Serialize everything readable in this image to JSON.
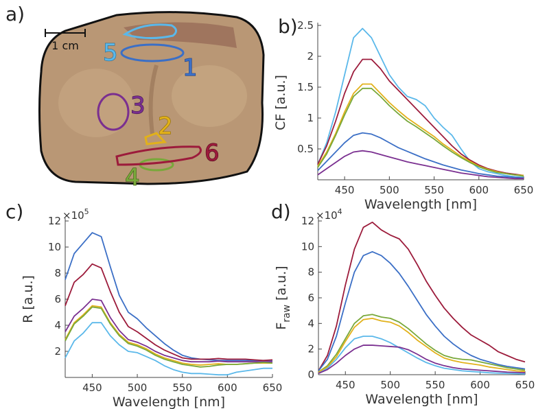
{
  "panel_a": {
    "label": "a)",
    "scale_bar": "1 cm",
    "regions": [
      "1",
      "2",
      "3",
      "4",
      "5",
      "6"
    ]
  },
  "chart_data": [
    {
      "type": "line",
      "panel_label": "b)",
      "xlabel": "Wavelength [nm]",
      "ylabel": "CF [a.u.]",
      "x": [
        420,
        430,
        440,
        450,
        460,
        470,
        480,
        490,
        500,
        510,
        520,
        530,
        540,
        550,
        560,
        570,
        580,
        590,
        600,
        610,
        620,
        630,
        640,
        650
      ],
      "xlim": [
        420,
        650
      ],
      "xticks": [
        450,
        500,
        550,
        600,
        650
      ],
      "ylim": [
        0,
        2.5
      ],
      "yticks": [
        0.5,
        1,
        1.5,
        2,
        2.5
      ],
      "series": [
        {
          "color": "#5ab8ea",
          "values": [
            0.25,
            0.6,
            1.1,
            1.7,
            2.3,
            2.45,
            2.3,
            2.0,
            1.7,
            1.5,
            1.35,
            1.3,
            1.2,
            1.0,
            0.85,
            0.72,
            0.5,
            0.3,
            0.18,
            0.13,
            0.1,
            0.07,
            0.05,
            0.04
          ]
        },
        {
          "color": "#9c1b3b",
          "values": [
            0.25,
            0.55,
            0.95,
            1.4,
            1.75,
            1.95,
            1.95,
            1.8,
            1.6,
            1.45,
            1.3,
            1.15,
            1.0,
            0.85,
            0.7,
            0.55,
            0.42,
            0.32,
            0.24,
            0.18,
            0.14,
            0.11,
            0.09,
            0.07
          ]
        },
        {
          "color": "#e2b11a",
          "values": [
            0.22,
            0.45,
            0.75,
            1.1,
            1.4,
            1.55,
            1.55,
            1.4,
            1.25,
            1.12,
            1.0,
            0.9,
            0.8,
            0.7,
            0.58,
            0.48,
            0.38,
            0.3,
            0.22,
            0.17,
            0.13,
            0.1,
            0.08,
            0.07
          ]
        },
        {
          "color": "#78a83a",
          "values": [
            0.2,
            0.42,
            0.72,
            1.05,
            1.35,
            1.48,
            1.48,
            1.35,
            1.2,
            1.07,
            0.95,
            0.86,
            0.76,
            0.66,
            0.55,
            0.45,
            0.36,
            0.28,
            0.21,
            0.16,
            0.12,
            0.1,
            0.08,
            0.06
          ]
        },
        {
          "color": "#3b6fc6",
          "values": [
            0.15,
            0.3,
            0.45,
            0.6,
            0.72,
            0.76,
            0.74,
            0.68,
            0.6,
            0.52,
            0.46,
            0.4,
            0.34,
            0.29,
            0.24,
            0.2,
            0.16,
            0.13,
            0.1,
            0.08,
            0.06,
            0.05,
            0.04,
            0.03
          ]
        },
        {
          "color": "#7a2f90",
          "values": [
            0.08,
            0.18,
            0.28,
            0.38,
            0.45,
            0.47,
            0.45,
            0.41,
            0.37,
            0.33,
            0.29,
            0.26,
            0.23,
            0.2,
            0.17,
            0.14,
            0.11,
            0.09,
            0.07,
            0.05,
            0.04,
            0.03,
            0.02,
            0.02
          ]
        }
      ]
    },
    {
      "type": "line",
      "panel_label": "c)",
      "xlabel": "Wavelength [nm]",
      "ylabel": "R [a.u.]",
      "y_multiplier": {
        "base": "×10",
        "exp": "5"
      },
      "x": [
        420,
        430,
        440,
        450,
        460,
        470,
        480,
        490,
        500,
        510,
        520,
        530,
        540,
        550,
        560,
        570,
        580,
        590,
        600,
        610,
        620,
        630,
        640,
        650
      ],
      "xlim": [
        420,
        650
      ],
      "xticks": [
        450,
        500,
        550,
        600,
        650
      ],
      "ylim": [
        0,
        12
      ],
      "yticks": [
        2,
        4,
        6,
        8,
        10,
        12
      ],
      "series": [
        {
          "color": "#3b6fc6",
          "values": [
            7.5,
            9.5,
            10.3,
            11.1,
            10.8,
            8.5,
            6.3,
            5.0,
            4.5,
            3.8,
            3.2,
            2.6,
            2.1,
            1.7,
            1.5,
            1.4,
            1.35,
            1.3,
            1.3,
            1.3,
            1.3,
            1.3,
            1.3,
            1.3
          ]
        },
        {
          "color": "#9c1b3b",
          "values": [
            5.5,
            7.3,
            7.9,
            8.7,
            8.4,
            6.6,
            5.0,
            3.9,
            3.5,
            3.0,
            2.5,
            2.1,
            1.8,
            1.5,
            1.4,
            1.4,
            1.4,
            1.45,
            1.4,
            1.4,
            1.4,
            1.35,
            1.3,
            1.35
          ]
        },
        {
          "color": "#7a2f90",
          "values": [
            3.5,
            4.7,
            5.3,
            6.0,
            5.9,
            4.6,
            3.6,
            2.9,
            2.7,
            2.4,
            2.0,
            1.7,
            1.5,
            1.3,
            1.2,
            1.2,
            1.2,
            1.25,
            1.2,
            1.2,
            1.2,
            1.2,
            1.2,
            1.2
          ]
        },
        {
          "color": "#e2b11a",
          "values": [
            2.9,
            4.2,
            4.8,
            5.5,
            5.4,
            4.2,
            3.3,
            2.7,
            2.5,
            2.2,
            1.8,
            1.5,
            1.3,
            1.1,
            1.0,
            0.95,
            1.0,
            1.05,
            1.0,
            1.0,
            1.05,
            1.1,
            1.1,
            1.1
          ]
        },
        {
          "color": "#78a83a",
          "values": [
            2.8,
            4.1,
            4.7,
            5.4,
            5.3,
            4.1,
            3.2,
            2.6,
            2.4,
            2.1,
            1.7,
            1.4,
            1.2,
            1.0,
            0.9,
            0.8,
            0.85,
            0.95,
            1.0,
            1.0,
            1.05,
            1.1,
            1.15,
            1.1
          ]
        },
        {
          "color": "#5ab8ea",
          "values": [
            1.5,
            2.8,
            3.4,
            4.2,
            4.2,
            3.2,
            2.5,
            2.0,
            1.9,
            1.6,
            1.3,
            0.9,
            0.6,
            0.4,
            0.3,
            0.3,
            0.25,
            0.2,
            0.2,
            0.4,
            0.5,
            0.6,
            0.7,
            0.7
          ]
        }
      ]
    },
    {
      "type": "line",
      "panel_label": "d)",
      "xlabel": "Wavelength [nm]",
      "ylabel": [
        "F",
        "raw",
        "[a.u.]"
      ],
      "y_multiplier": {
        "base": "×10",
        "exp": "4"
      },
      "x": [
        420,
        430,
        440,
        450,
        460,
        470,
        480,
        490,
        500,
        510,
        520,
        530,
        540,
        550,
        560,
        570,
        580,
        590,
        600,
        610,
        620,
        630,
        640,
        650
      ],
      "xlim": [
        420,
        650
      ],
      "xticks": [
        450,
        500,
        550,
        600,
        650
      ],
      "ylim": [
        0,
        12
      ],
      "yticks": [
        0,
        2,
        4,
        6,
        8,
        10,
        12
      ],
      "series": [
        {
          "color": "#9c1b3b",
          "values": [
            0.3,
            1.5,
            3.8,
            7.0,
            9.8,
            11.5,
            11.9,
            11.3,
            10.9,
            10.6,
            9.8,
            8.6,
            7.3,
            6.2,
            5.2,
            4.4,
            3.7,
            3.1,
            2.7,
            2.3,
            1.8,
            1.5,
            1.2,
            1.0
          ]
        },
        {
          "color": "#3b6fc6",
          "values": [
            0.3,
            1.2,
            3.0,
            5.6,
            8.0,
            9.3,
            9.6,
            9.3,
            8.7,
            7.9,
            6.9,
            5.8,
            4.7,
            3.8,
            3.0,
            2.4,
            1.9,
            1.5,
            1.2,
            1.0,
            0.8,
            0.65,
            0.55,
            0.45
          ]
        },
        {
          "color": "#78a83a",
          "values": [
            0.2,
            0.7,
            1.6,
            2.8,
            4.0,
            4.6,
            4.7,
            4.5,
            4.4,
            4.1,
            3.6,
            3.0,
            2.4,
            1.9,
            1.5,
            1.3,
            1.2,
            1.15,
            1.0,
            0.85,
            0.7,
            0.55,
            0.45,
            0.35
          ]
        },
        {
          "color": "#e2b11a",
          "values": [
            0.2,
            0.6,
            1.4,
            2.6,
            3.7,
            4.3,
            4.4,
            4.2,
            4.1,
            3.8,
            3.3,
            2.7,
            2.2,
            1.7,
            1.3,
            1.1,
            0.95,
            0.85,
            0.75,
            0.6,
            0.5,
            0.4,
            0.3,
            0.25
          ]
        },
        {
          "color": "#5ab8ea",
          "values": [
            0.1,
            0.5,
            1.2,
            2.1,
            2.8,
            3.0,
            3.0,
            2.8,
            2.5,
            2.1,
            1.7,
            1.3,
            0.95,
            0.7,
            0.5,
            0.4,
            0.3,
            0.25,
            0.2,
            0.15,
            0.12,
            0.1,
            0.08,
            0.06
          ]
        },
        {
          "color": "#7a2f90",
          "values": [
            0.1,
            0.4,
            0.9,
            1.5,
            2.0,
            2.3,
            2.3,
            2.25,
            2.2,
            2.15,
            1.95,
            1.6,
            1.2,
            0.9,
            0.7,
            0.55,
            0.45,
            0.4,
            0.35,
            0.3,
            0.25,
            0.2,
            0.18,
            0.15
          ]
        }
      ]
    }
  ]
}
